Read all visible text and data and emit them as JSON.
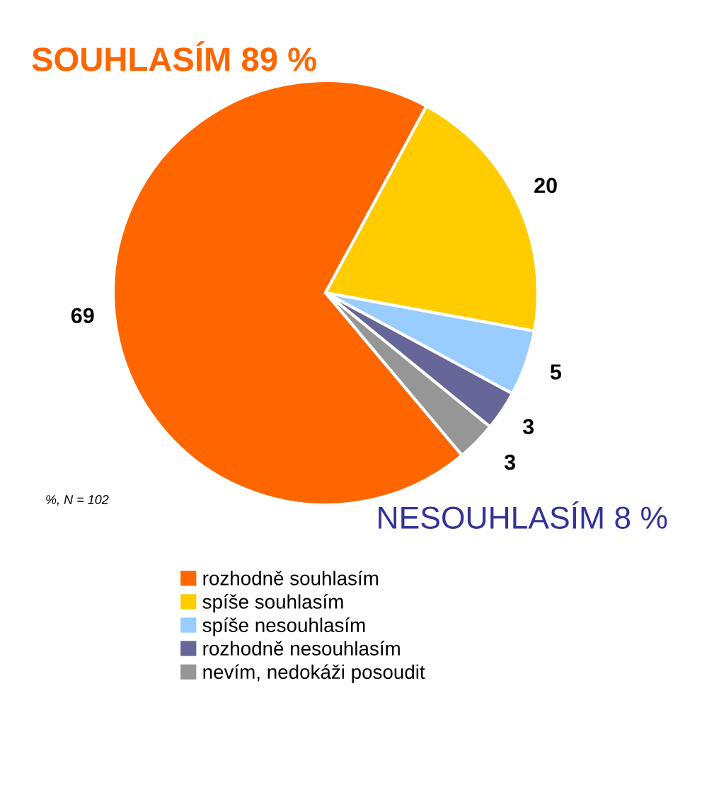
{
  "chart_data": {
    "type": "pie",
    "categories": [
      "rozhodně souhlasím",
      "spíše souhlasím",
      "spíše nesouhlasím",
      "rozhodně nesouhlasím",
      "nevím, nedokáži posoudit"
    ],
    "values": [
      69,
      20,
      5,
      3,
      3
    ],
    "colors": [
      "#ff6600",
      "#ffcc00",
      "#99ccff",
      "#666699",
      "#969696"
    ],
    "data_labels": true,
    "legend": "bottom",
    "annotations": [
      "SOUHLASÍM 89 %",
      "NESOUHLASÍM 8 %",
      "%, N = 102"
    ]
  }
}
